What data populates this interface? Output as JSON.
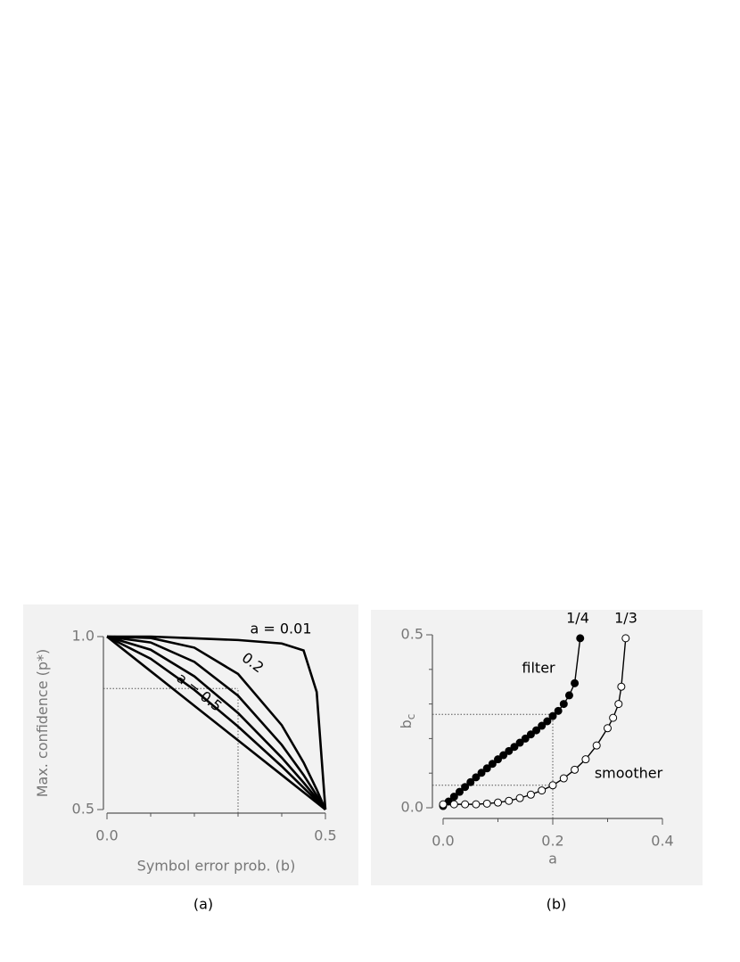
{
  "chart_data": [
    {
      "type": "line",
      "panel_label": "(a)",
      "x_label": "Symbol error prob.  (b)",
      "y_label": "Max. confidence  (p*)",
      "x": [
        0,
        0.1,
        0.2,
        0.3,
        0.4,
        0.45,
        0.48,
        0.5
      ],
      "series": [
        {
          "name": "a = 0.01",
          "color": "#000000",
          "values": [
            1,
            1,
            0.995,
            0.99,
            0.98,
            0.96,
            0.84,
            0.5
          ]
        },
        {
          "name": "0.2",
          "color": "#000000",
          "values": [
            1,
            0.996,
            0.968,
            0.892,
            0.744,
            0.636,
            0.558,
            0.5
          ]
        },
        {
          "color": "#000000",
          "values": [
            1,
            0.983,
            0.927,
            0.829,
            0.687,
            0.6,
            0.541,
            0.5
          ]
        },
        {
          "color": "#000000",
          "values": [
            1,
            0.962,
            0.885,
            0.779,
            0.65,
            0.578,
            0.532,
            0.5
          ]
        },
        {
          "color": "#000000",
          "values": [
            1,
            0.936,
            0.846,
            0.74,
            0.625,
            0.563,
            0.526,
            0.5
          ]
        },
        {
          "name": "a = 0.5",
          "color": "#000000",
          "values": [
            1,
            0.9,
            0.8,
            0.7,
            0.6,
            0.55,
            0.52,
            0.5
          ]
        }
      ],
      "xlim": [
        0,
        0.5
      ],
      "ylim": [
        0.5,
        1.0
      ],
      "xticks": [
        {
          "value": 0,
          "label": "0.0"
        },
        0.5
      ],
      "yticks": [
        0.5,
        {
          "value": 1.0,
          "label": "1.0"
        }
      ],
      "minor_xticks": [
        0.1,
        0.2,
        0.3,
        0.4
      ],
      "minor_yticks": [],
      "guide_x": 0.3,
      "guide_y": [
        0.85
      ]
    },
    {
      "type": "scatter",
      "panel_label": "(b)",
      "x_label": "a",
      "y_label": "b",
      "y_label_sub": "c",
      "series": [
        {
          "name": "filter",
          "end_label": "1/4",
          "color": "#000000",
          "marker": "filled",
          "x": [
            0,
            0.01,
            0.02,
            0.03,
            0.04,
            0.05,
            0.06,
            0.07,
            0.08,
            0.09,
            0.1,
            0.11,
            0.12,
            0.13,
            0.14,
            0.15,
            0.16,
            0.17,
            0.18,
            0.19,
            0.2,
            0.21,
            0.22,
            0.23,
            0.24,
            0.25
          ],
          "values": [
            0.005,
            0.018,
            0.032,
            0.046,
            0.06,
            0.074,
            0.088,
            0.101,
            0.114,
            0.127,
            0.14,
            0.152,
            0.164,
            0.176,
            0.188,
            0.2,
            0.212,
            0.224,
            0.237,
            0.25,
            0.265,
            0.28,
            0.3,
            0.325,
            0.36,
            0.49
          ]
        },
        {
          "name": "smoother",
          "end_label": "1/3",
          "color": "#000000",
          "marker": "open",
          "x": [
            0,
            0.02,
            0.04,
            0.06,
            0.08,
            0.1,
            0.12,
            0.14,
            0.16,
            0.18,
            0.2,
            0.22,
            0.24,
            0.26,
            0.28,
            0.3,
            0.31,
            0.32,
            0.325,
            0.333
          ],
          "values": [
            0.01,
            0.01,
            0.01,
            0.01,
            0.012,
            0.015,
            0.02,
            0.028,
            0.038,
            0.05,
            0.065,
            0.085,
            0.11,
            0.14,
            0.18,
            0.23,
            0.26,
            0.3,
            0.35,
            0.49
          ]
        }
      ],
      "xlim": [
        0,
        0.4
      ],
      "ylim": [
        0,
        0.5
      ],
      "xticks": [
        {
          "value": 0,
          "label": "0.0"
        },
        {
          "value": 0.2,
          "label": "0.2"
        },
        {
          "value": 0.4,
          "label": "0.4"
        }
      ],
      "yticks": [
        {
          "value": 0,
          "label": "0.0"
        },
        0.5
      ],
      "minor_xticks": [
        0.1,
        0.3
      ],
      "minor_yticks": [
        0.1,
        0.2,
        0.3,
        0.4
      ],
      "guide_x": 0.2,
      "guide_y": [
        0.27,
        0.065
      ]
    }
  ]
}
